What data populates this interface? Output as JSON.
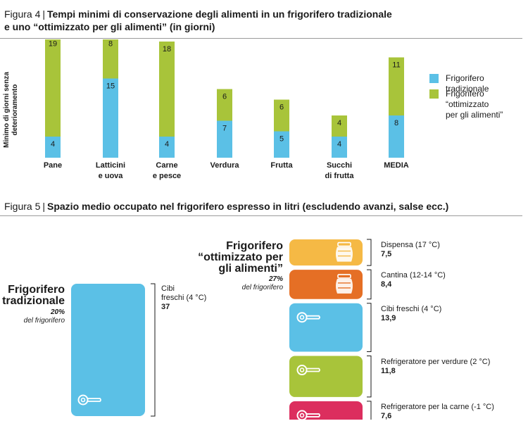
{
  "figure4": {
    "label": "Figura 4",
    "separator": "|",
    "title_line1": "Tempi minimi di conservazione degli alimenti in un frigorifero tradizionale",
    "title_line2": "e uno “ottimizzato per gli alimenti” (in giorni)"
  },
  "figure5": {
    "label": "Figura 5",
    "separator": "|",
    "title": "Spazio medio occupato nel frigorifero espresso in litri (escludendo avanzi, salse ecc.)"
  },
  "colors": {
    "traditional": "#5bc0e6",
    "optimized": "#a8c43a",
    "pantry": "#f5b945",
    "cellar": "#e56f25",
    "fresh": "#5bc0e6",
    "veg": "#a8c43a",
    "meat": "#dc2e5e"
  },
  "chart_data": {
    "type": "bar",
    "stacked": true,
    "title": "Tempi minimi di conservazione degli alimenti in un frigorifero tradizionale e uno “ottimizzato per gli alimenti” (in giorni)",
    "ylabel": "Minimo di giorni senza deterioramento",
    "categories": [
      [
        "Pane"
      ],
      [
        "Latticini",
        "e uova"
      ],
      [
        "Carne",
        "e pesce"
      ],
      [
        "Verdura"
      ],
      [
        "Frutta"
      ],
      [
        "Succhi",
        "di frutta"
      ],
      [
        "MEDIA"
      ]
    ],
    "series": [
      {
        "name": "Frigorifero tradizionale",
        "values": [
          4,
          15,
          4,
          7,
          5,
          4,
          8
        ]
      },
      {
        "name": "Frigorifero “ottimizzato per gli alimenti”",
        "values": [
          19,
          8,
          18,
          6,
          6,
          4,
          11
        ]
      }
    ],
    "ylim": [
      0,
      23
    ],
    "grid": false,
    "legend_position": "right"
  },
  "legend": {
    "traditional": "Frigorifero tradizionale",
    "optimized_lines": [
      "Frigorifero",
      "“ottimizzato",
      "per gli alimenti”"
    ]
  },
  "fridge_traditional": {
    "title_lines": [
      "Frigorifero",
      "tradizionale"
    ],
    "percent": "20%",
    "percent_label": "del frigorifero",
    "compartment_lines": [
      "Cibi",
      "freschi (4 °C)"
    ],
    "value": "37"
  },
  "fridge_optimized": {
    "title_lines": [
      "Frigorifero",
      "“ottimizzato per",
      "gli alimenti”"
    ],
    "percent": "27%",
    "percent_label": "del frigorifero",
    "compartments": [
      {
        "label": "Dispensa (17 °C)",
        "value": "7,5",
        "liters": 7.5,
        "icon": "jar-icon"
      },
      {
        "label": "Cantina (12-14 °C)",
        "value": "8,4",
        "liters": 8.4,
        "icon": "jar-icon"
      },
      {
        "label": "Cibi freschi (4 °C)",
        "value": "13,9",
        "liters": 13.9,
        "icon": "handle-icon"
      },
      {
        "label": "Refrigeratore per verdure (2 °C)",
        "value": "11,8",
        "liters": 11.8,
        "icon": "handle-icon"
      },
      {
        "label": "Refrigeratore per la carne (-1 °C)",
        "value": "7,6",
        "liters": 7.6,
        "icon": "handle-icon"
      }
    ]
  }
}
